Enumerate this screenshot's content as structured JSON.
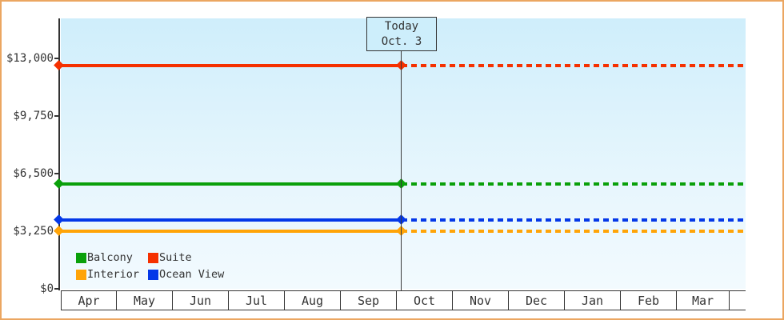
{
  "chart_data": {
    "type": "line",
    "description": "Cruise cabin price tracking chart: four constant price lines, solid before today's date and dashed (projected) after",
    "categories": [
      "Apr",
      "May",
      "Jun",
      "Jul",
      "Aug",
      "Sep",
      "Oct",
      "Nov",
      "Dec",
      "Jan",
      "Feb",
      "Mar"
    ],
    "y_axis": {
      "ticks": [
        {
          "label": "$0",
          "value": 0
        },
        {
          "label": "$3,250",
          "value": 3250
        },
        {
          "label": "$6,500",
          "value": 6500
        },
        {
          "label": "$9,750",
          "value": 9750
        },
        {
          "label": "$13,000",
          "value": 13000
        }
      ],
      "range": [
        0,
        15250
      ]
    },
    "series": [
      {
        "name": "Balcony",
        "id": "balcony",
        "value": 5900,
        "color": "#0aa00a"
      },
      {
        "name": "Suite",
        "id": "suite",
        "value": 12600,
        "color": "#f53000"
      },
      {
        "name": "Interior",
        "id": "interior",
        "value": 3250,
        "color": "#ffa408"
      },
      {
        "name": "Ocean View",
        "id": "ocean-view",
        "value": 3900,
        "color": "#0438e8"
      }
    ],
    "today": {
      "line1": "Today",
      "line2": "Oct. 3",
      "month": "Oct",
      "day": 3
    },
    "legend_position": "bottom-left",
    "grid": "off"
  },
  "palette": {
    "frame_border": "#eba661",
    "axis": "#333333",
    "plot_background_top": "#cfeefb",
    "plot_background_bottom": "#f2fafe",
    "today_box_fill": "#cdeefb"
  }
}
